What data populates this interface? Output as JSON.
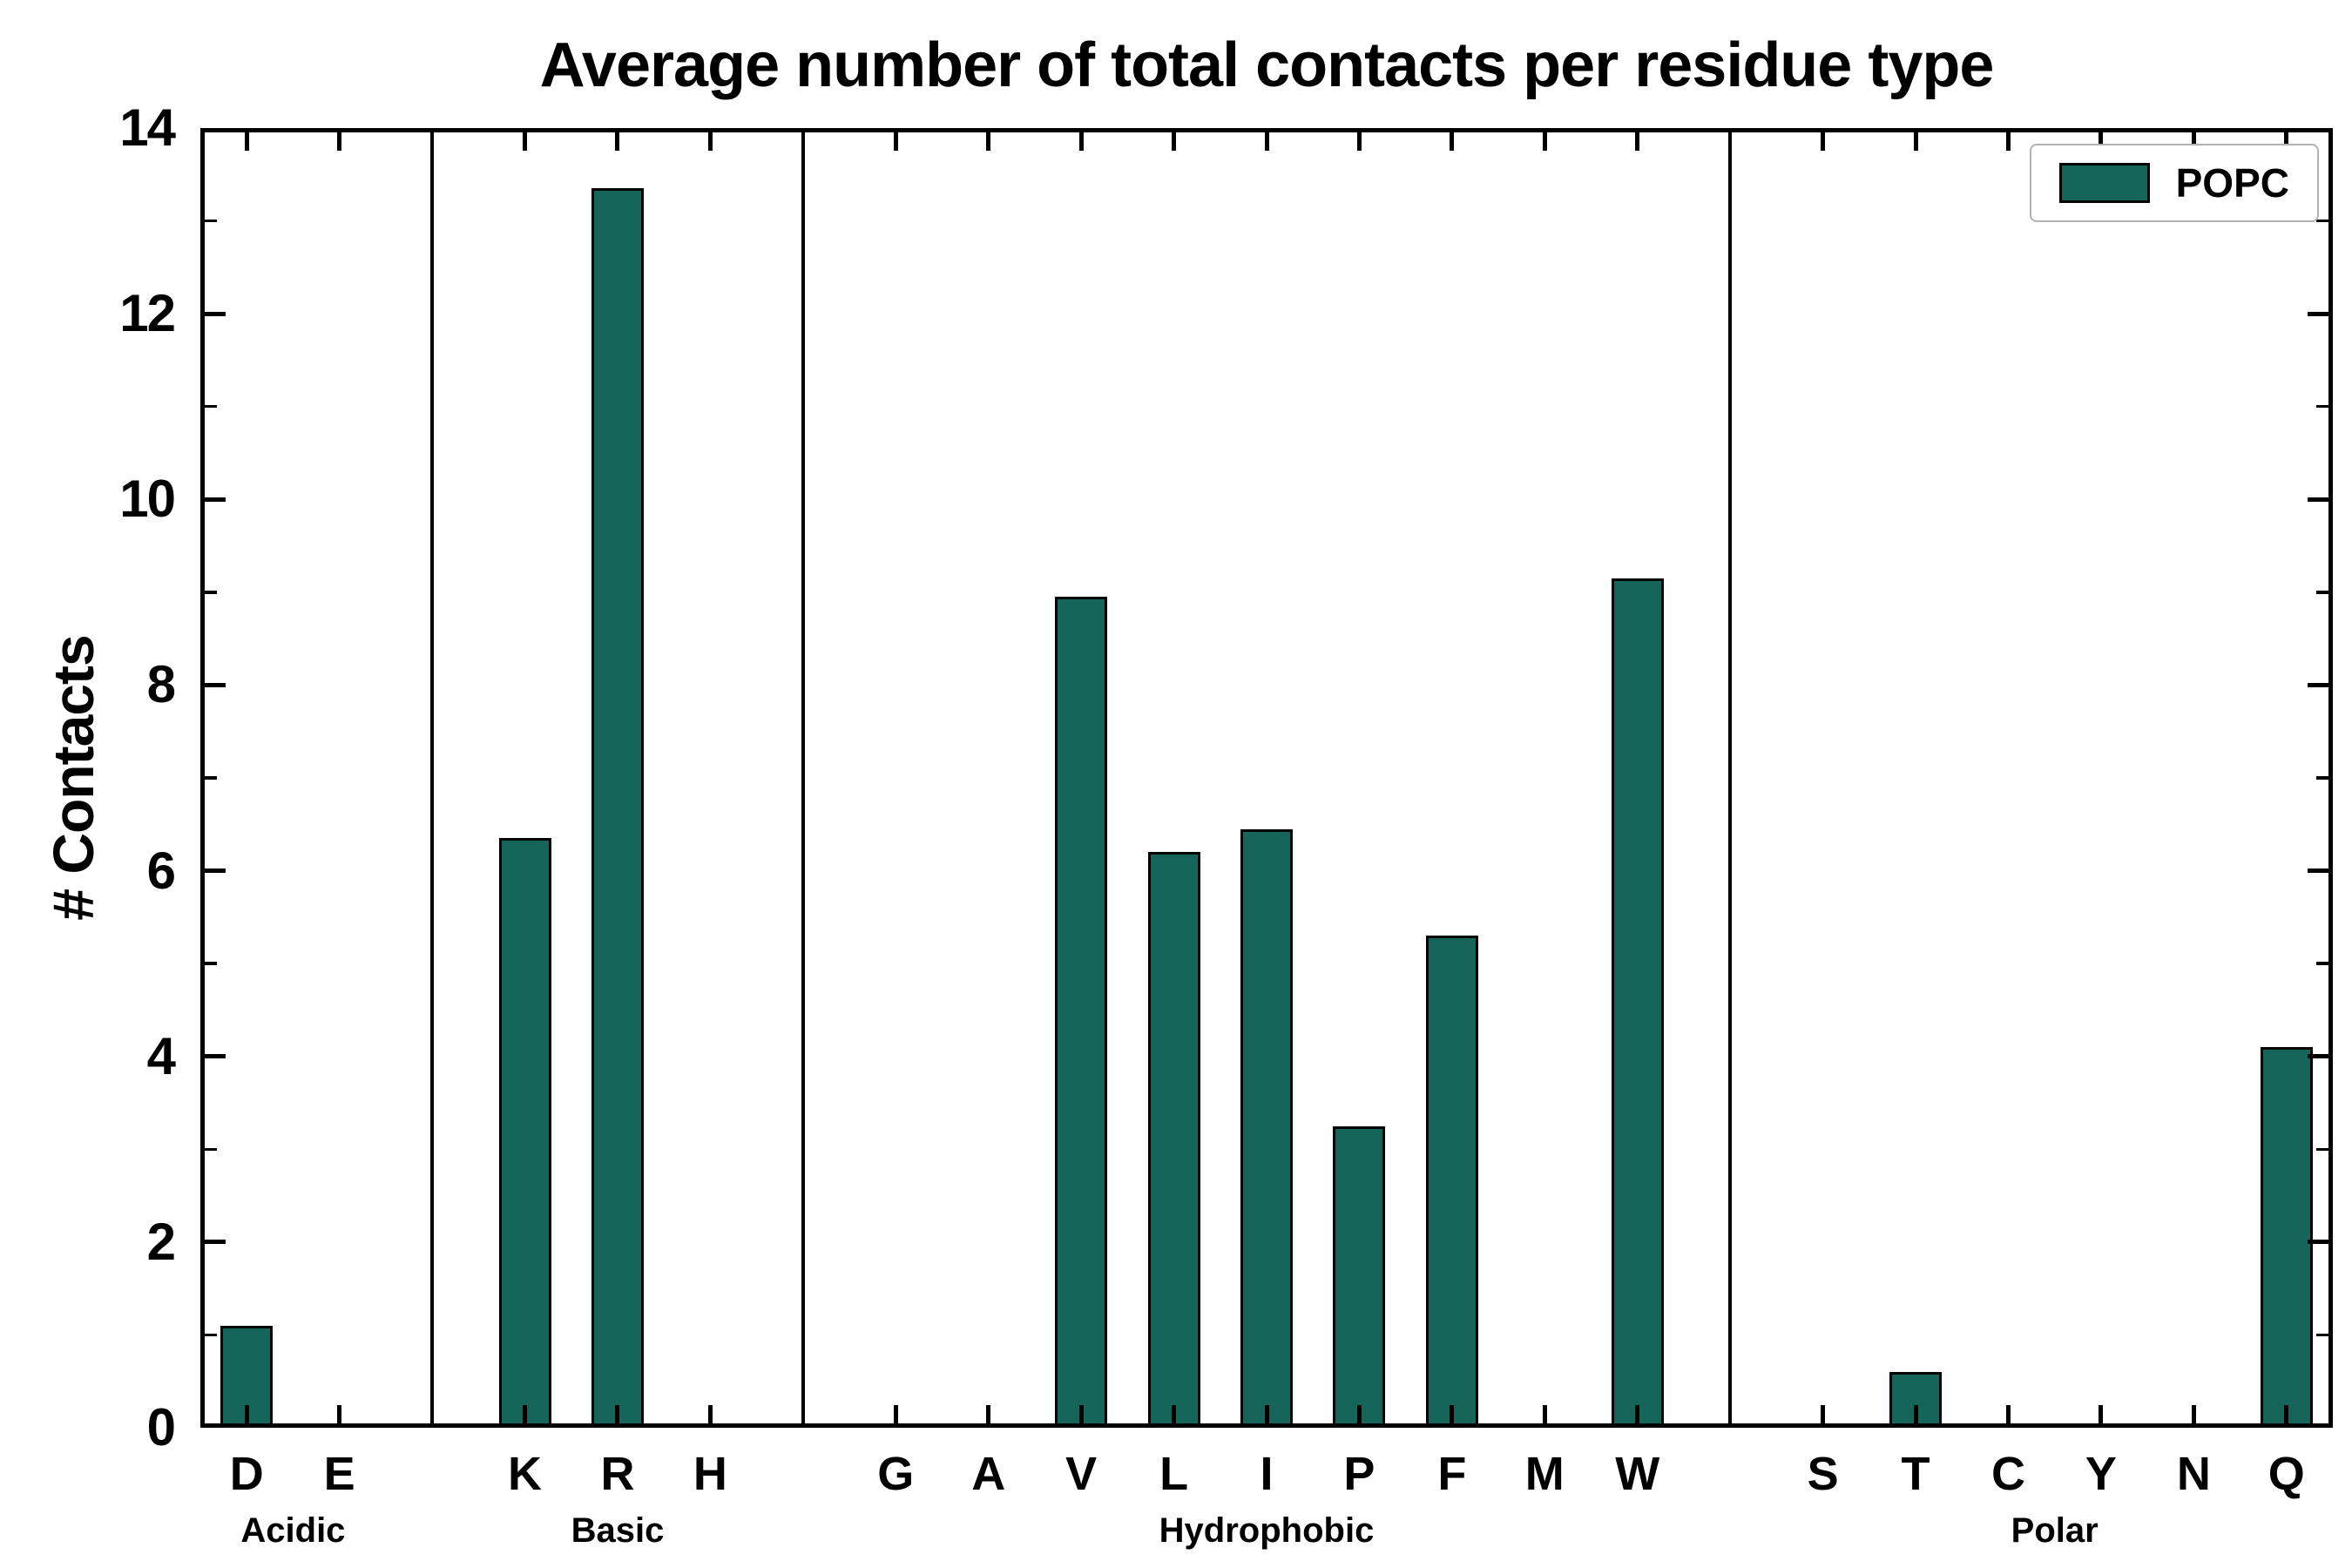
{
  "chart_data": {
    "type": "bar",
    "title": "Average number of total contacts per residue type",
    "ylabel": "# Contacts",
    "ylim": [
      0,
      14
    ],
    "yticks": [
      0,
      2,
      4,
      6,
      8,
      10,
      12,
      14
    ],
    "bar_color": "#16655a",
    "bar_edge_color": "#000000",
    "legend": {
      "label": "POPC",
      "position": "upper right"
    },
    "grid": false,
    "groups": [
      {
        "label": "Acidic",
        "categories": [
          "D",
          "E"
        ],
        "values": [
          1.1,
          0.05
        ]
      },
      {
        "label": "Basic",
        "categories": [
          "K",
          "R",
          "H"
        ],
        "values": [
          6.35,
          13.35,
          0.04
        ]
      },
      {
        "label": "Hydrophobic",
        "categories": [
          "G",
          "A",
          "V",
          "L",
          "I",
          "P",
          "F",
          "M",
          "W"
        ],
        "values": [
          0.05,
          0.05,
          8.95,
          6.2,
          6.45,
          3.25,
          5.3,
          0.01,
          9.15
        ]
      },
      {
        "label": "Polar",
        "categories": [
          "S",
          "T",
          "C",
          "Y",
          "N",
          "Q"
        ],
        "values": [
          0.04,
          0.6,
          0.01,
          0.04,
          0.04,
          4.1
        ]
      }
    ]
  }
}
